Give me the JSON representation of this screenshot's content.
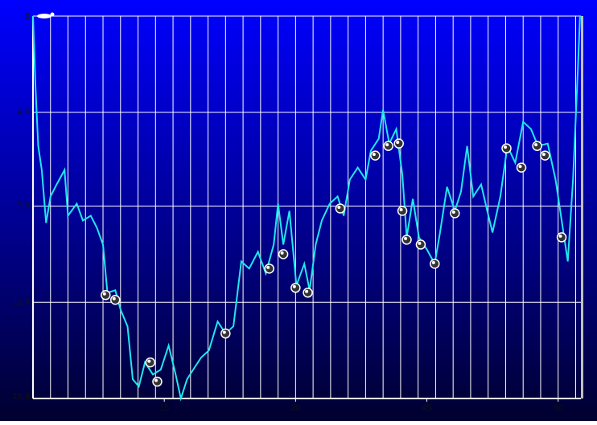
{
  "chart_data": {
    "type": "line",
    "xlim": [
      0,
      62.6
    ],
    "ylim": [
      15.9,
      0
    ],
    "y_inverted": true,
    "grid": true,
    "xgrid_step": 2,
    "xticks": [
      15,
      30,
      45,
      60
    ],
    "yticks": [
      0,
      {
        "value": 4.0,
        "label": "4,0"
      },
      {
        "value": 7.9,
        "label": "7,9"
      },
      {
        "value": 11.9,
        "label": "11,9"
      },
      {
        "value": 15.9,
        "label": "15,9"
      }
    ],
    "series": [
      {
        "color": "#22e6f0",
        "style": "line",
        "x": [
          0,
          0.3,
          0.6,
          1.0,
          1.5,
          2.0,
          2.7,
          3.6,
          4.0,
          5.0,
          5.7,
          6.6,
          7.3,
          8.0,
          8.5,
          9.4,
          10.0,
          10.8,
          11.4,
          12.1,
          12.8,
          13.7,
          14.6,
          15.5,
          16.3,
          16.9,
          17.6,
          18.3,
          19.2,
          20.1,
          21.1,
          22.0,
          22.9,
          23.8,
          24.7,
          25.7,
          26.6,
          27.5,
          28.0,
          28.6,
          29.3,
          30.1,
          31.0,
          31.6,
          32.3,
          33.0,
          33.9,
          34.8,
          35.5,
          36.2,
          37.1,
          38.0,
          38.6,
          39.5,
          40.0,
          40.7,
          41.5,
          42.2,
          42.7,
          43.4,
          44.1,
          45.0,
          45.9,
          46.5,
          47.3,
          48.2,
          48.9,
          49.6,
          50.3,
          51.2,
          51.9,
          52.5,
          53.4,
          54.2,
          55.1,
          56.0,
          56.9,
          57.7,
          58.8,
          59.7,
          60.4,
          61.1,
          61.7,
          62.2,
          62.5
        ],
        "values": [
          0,
          3.1,
          5.4,
          6.4,
          8.6,
          7.5,
          7.0,
          6.4,
          8.3,
          7.8,
          8.5,
          8.3,
          8.8,
          9.5,
          11.5,
          11.4,
          12.2,
          12.9,
          15.1,
          15.4,
          14.4,
          14.9,
          14.7,
          13.7,
          14.9,
          15.9,
          15.1,
          14.7,
          14.2,
          13.9,
          12.7,
          13.2,
          12.9,
          10.2,
          10.5,
          9.8,
          10.7,
          9.5,
          7.8,
          9.5,
          8.1,
          11.2,
          10.3,
          11.4,
          9.5,
          8.5,
          7.8,
          7.5,
          8.3,
          6.8,
          6.3,
          6.8,
          5.6,
          5.1,
          3.9,
          5.3,
          4.7,
          6.6,
          9.2,
          7.6,
          9.2,
          9.7,
          10.3,
          9.0,
          7.1,
          8.1,
          7.3,
          5.4,
          7.5,
          7.0,
          8.1,
          9.0,
          7.5,
          5.4,
          6.1,
          4.4,
          4.7,
          5.4,
          5.3,
          6.8,
          8.5,
          10.2,
          6.8,
          2.7,
          0
        ]
      },
      {
        "color": "#ffffff",
        "style": "marker",
        "x": [
          8.3,
          9.4,
          13.4,
          14.2,
          22.0,
          27.0,
          28.6,
          30.0,
          31.4,
          35.1,
          39.1,
          40.6,
          41.8,
          42.2,
          42.7,
          44.3,
          45.9,
          48.2,
          54.1,
          55.8,
          57.6,
          58.5,
          60.4
        ],
        "values": [
          11.6,
          11.8,
          14.4,
          15.2,
          13.2,
          10.5,
          9.9,
          11.3,
          11.5,
          8.0,
          5.8,
          5.4,
          5.3,
          8.1,
          9.3,
          9.5,
          10.3,
          8.2,
          5.5,
          6.3,
          5.4,
          5.8,
          9.2
        ]
      }
    ]
  }
}
